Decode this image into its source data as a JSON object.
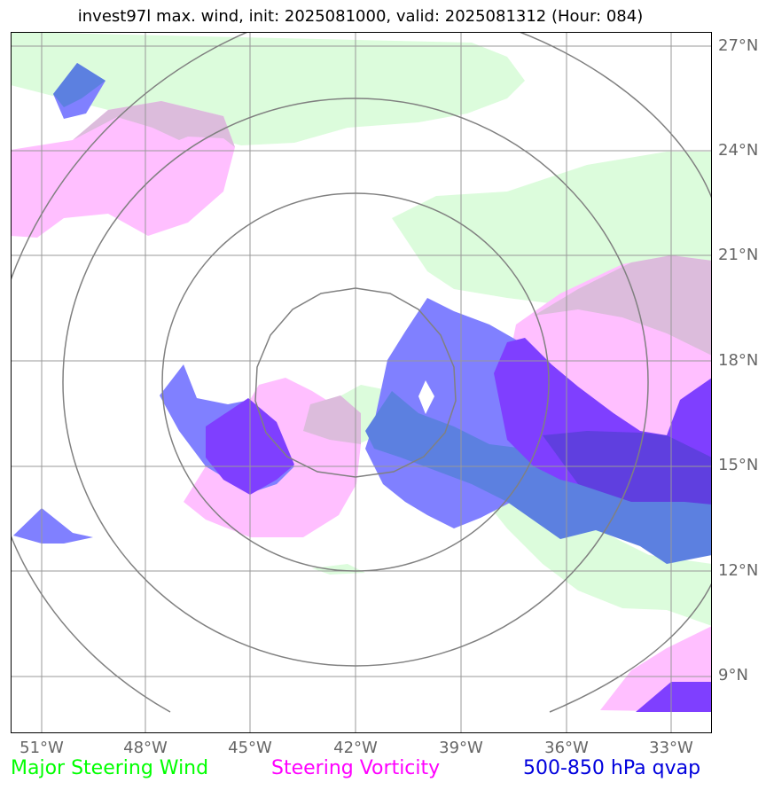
{
  "title": "invest97l max. wind, init: 2025081000, valid: 2025081312 (Hour: 084)",
  "lat_labels": [
    "27°N",
    "24°N",
    "21°N",
    "18°N",
    "15°N",
    "12°N",
    "9°N"
  ],
  "lon_labels": [
    "51°W",
    "48°W",
    "45°W",
    "42°W",
    "39°W",
    "36°W",
    "33°W"
  ],
  "legend": {
    "wind": "Major Steering Wind",
    "vorticity": "Steering Vorticity",
    "qvap": "500-850 hPa qvap"
  },
  "colors": {
    "wind": "#00ff00",
    "vorticity": "#ff00ff",
    "qvap": "#0000dd",
    "wind_fill": "#dcfcdc",
    "vorticity_fill": "#ffbfff",
    "overlap_fill": "#dcbcdc",
    "qvap_light": "#8080ff",
    "qvap_mid": "#5c80e0",
    "qvap_dark": "#7f3fff",
    "qvap_darkest": "#5f3fdf",
    "grid": "#999999",
    "range_rings": "#808080"
  }
}
